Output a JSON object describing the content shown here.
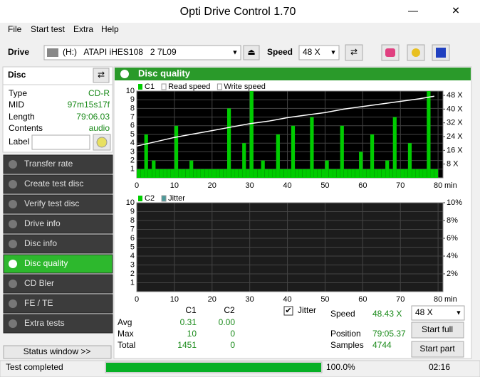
{
  "window": {
    "title": "Opti Drive Control 1.70"
  },
  "menu": [
    "File",
    "Start test",
    "Extra",
    "Help"
  ],
  "toolbar": {
    "drive_label": "Drive",
    "drive": "(H:)   ATAPI iHES108   2 7L09",
    "speed_label": "Speed",
    "speed": "48 X"
  },
  "disc": {
    "title": "Disc",
    "rows": [
      [
        "Type",
        "CD-R"
      ],
      [
        "MID",
        "97m15s17f"
      ],
      [
        "Length",
        "79:06.03"
      ],
      [
        "Contents",
        "audio"
      ]
    ],
    "label": "Label"
  },
  "nav": [
    "Transfer rate",
    "Create test disc",
    "Verify test disc",
    "Drive info",
    "Disc info",
    "Disc quality",
    "CD Bler",
    "FE / TE",
    "Extra tests"
  ],
  "status_window": "Status window >>",
  "panel_title": "Disc quality",
  "chart_data": [
    {
      "type": "bar",
      "x_unit": "min",
      "xlim": [
        0,
        81.3
      ],
      "xticks": [
        0,
        10,
        20,
        30,
        40,
        50,
        60,
        70,
        80
      ],
      "ylim": [
        0,
        10
      ],
      "yticks": [
        1,
        2,
        3,
        4,
        5,
        6,
        7,
        8,
        9,
        10
      ],
      "y2lim": [
        0,
        50.5
      ],
      "y2ticks": [
        {
          "value": 8,
          "label": "8 X"
        },
        {
          "value": 16,
          "label": "16 X"
        },
        {
          "value": 24,
          "label": "24 X"
        },
        {
          "value": 32,
          "label": "32 X"
        },
        {
          "value": 40,
          "label": "40 X"
        },
        {
          "value": 48,
          "label": "48 X"
        }
      ],
      "series": [
        {
          "name": "C1",
          "color": "#00cc00",
          "x": [
            0.5,
            1.5,
            2.5,
            3.5,
            4.5,
            5.5,
            6.5,
            7.5,
            8.5,
            9.5,
            10.5,
            11.5,
            12.5,
            13.5,
            14.5,
            15.5,
            16.5,
            17.5,
            18.5,
            19.5,
            20.5,
            21.5,
            22.5,
            23.5,
            24.5,
            25.5,
            26.5,
            27.5,
            28.5,
            29.5,
            30.5,
            31.5,
            32.5,
            33.5,
            34.5,
            35.5,
            36.5,
            37.5,
            38.5,
            39.5,
            40.5,
            41.5,
            42.5,
            43.5,
            44.5,
            45.5,
            46.5,
            47.5,
            48.5,
            49.5,
            50.5,
            51.5,
            52.5,
            53.5,
            54.5,
            55.5,
            56.5,
            57.5,
            58.5,
            59.5,
            60.5,
            61.5,
            62.5,
            63.5,
            64.5,
            65.5,
            66.5,
            67.5,
            68.5,
            69.5,
            70.5,
            71.5,
            72.5,
            73.5,
            74.5,
            75.5,
            76.5,
            77.5,
            78.5,
            79.5
          ],
          "values": [
            1,
            1,
            5,
            1,
            2,
            1,
            1,
            1,
            1,
            1,
            6,
            1,
            1,
            1,
            2,
            1,
            1,
            1,
            1,
            1,
            1,
            1,
            1,
            1,
            8,
            1,
            1,
            1,
            4,
            1,
            10,
            1,
            1,
            2,
            1,
            1,
            1,
            5,
            1,
            1,
            1,
            6,
            1,
            1,
            1,
            1,
            7,
            1,
            1,
            1,
            2,
            1,
            1,
            1,
            6,
            1,
            1,
            1,
            1,
            3,
            1,
            1,
            5,
            1,
            1,
            1,
            2,
            1,
            7,
            1,
            1,
            1,
            4,
            1,
            1,
            1,
            1,
            10,
            1,
            1
          ]
        },
        {
          "name": "Read speed",
          "type": "line",
          "axis": "y2",
          "color": "#ffffff",
          "x": [
            0,
            5,
            10,
            15,
            20,
            25,
            30,
            35,
            40,
            45,
            50,
            55,
            60,
            65,
            70,
            75,
            79
          ],
          "values": [
            18.5,
            21,
            23.5,
            25.5,
            27.5,
            29.5,
            31.5,
            33,
            35,
            36.5,
            38,
            40,
            41.5,
            43,
            44.5,
            46,
            47.5
          ]
        },
        {
          "name": "Write speed",
          "type": "line",
          "axis": "y2",
          "color": "#ffffff",
          "x": [],
          "values": []
        }
      ]
    },
    {
      "type": "bar",
      "x_unit": "min",
      "xlim": [
        0,
        81.3
      ],
      "xticks": [
        0,
        10,
        20,
        30,
        40,
        50,
        60,
        70,
        80
      ],
      "ylim": [
        0,
        10
      ],
      "yticks": [
        1,
        2,
        3,
        4,
        5,
        6,
        7,
        8,
        9,
        10
      ],
      "y2lim": [
        0,
        10
      ],
      "y2ticks": [
        {
          "value": 2,
          "label": "2%"
        },
        {
          "value": 4,
          "label": "4%"
        },
        {
          "value": 6,
          "label": "6%"
        },
        {
          "value": 8,
          "label": "8%"
        },
        {
          "value": 10,
          "label": "10%"
        }
      ],
      "series": [
        {
          "name": "C2",
          "color": "#00cc00",
          "x": [],
          "values": []
        },
        {
          "name": "Jitter",
          "type": "line",
          "axis": "y2",
          "color": "#4a9a9a",
          "x": [],
          "values": []
        }
      ]
    }
  ],
  "stats": {
    "headers": [
      "C1",
      "C2"
    ],
    "rows": [
      [
        "Avg",
        "0.31",
        "0.00"
      ],
      [
        "Max",
        "10",
        "0"
      ],
      [
        "Total",
        "1451",
        "0"
      ]
    ]
  },
  "jitter": "Jitter",
  "info": {
    "rows": [
      [
        "Speed",
        "48.43 X"
      ],
      [
        "Position",
        "79:05.37"
      ],
      [
        "Samples",
        "4744"
      ]
    ],
    "speed_select": "48 X",
    "buttons": [
      "Start full",
      "Start part"
    ]
  },
  "statusbar": {
    "text": "Test completed",
    "progress": 100,
    "progress_label": "100.0%",
    "time": "02:16"
  }
}
